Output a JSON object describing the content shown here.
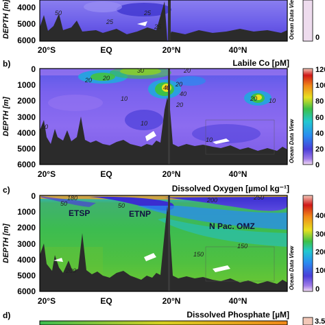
{
  "chart_data": [
    {
      "type": "heatmap",
      "panel_label": "",
      "title": "",
      "ylabel": "DEPTH [m]",
      "y_ticks": [
        "4000",
        "5000",
        "6000"
      ],
      "x_ticks": [
        "20°S",
        "EQ",
        "20°N",
        "40°N"
      ],
      "xlim": [
        -25,
        58
      ],
      "ylim": [
        3000,
        6000
      ],
      "contour_labels": [
        "50",
        "25",
        "25",
        "25"
      ],
      "colorbar_ticks": [
        "0"
      ],
      "credit": "Ocean Data View"
    },
    {
      "type": "heatmap",
      "panel_label": "b)",
      "title": "Labile Co [pM]",
      "ylabel": "DEPTH [m]",
      "y_ticks": [
        "0",
        "1000",
        "2000",
        "3000",
        "4000",
        "5000",
        "6000"
      ],
      "x_ticks": [
        "20°S",
        "EQ",
        "20°N",
        "40°N"
      ],
      "xlim": [
        -25,
        58
      ],
      "ylim": [
        0,
        6000
      ],
      "colorbar": {
        "min": 0,
        "max": 120,
        "ticks": [
          "120",
          "100",
          "80",
          "60",
          "40",
          "20",
          "0"
        ]
      },
      "contour_labels": [
        "30",
        "20",
        "20",
        "20",
        "40",
        "20",
        "40",
        "20",
        "10",
        "10",
        "20",
        "10",
        "10",
        "10"
      ],
      "credit": "Ocean Data View"
    },
    {
      "type": "heatmap",
      "panel_label": "c)",
      "title": "Dissolved Oxygen [µmol kg⁻¹]",
      "ylabel": "DEPTH [m]",
      "y_ticks": [
        "0",
        "1000",
        "2000",
        "3000",
        "4000",
        "5000",
        "6000"
      ],
      "x_ticks": [
        "20°S",
        "EQ",
        "20°N",
        "40°N"
      ],
      "xlim": [
        -25,
        58
      ],
      "ylim": [
        0,
        6000
      ],
      "colorbar": {
        "min": 0,
        "max": 400,
        "ticks": [
          "400",
          "300",
          "200",
          "100",
          "0"
        ]
      },
      "annotations": [
        "ETSP",
        "ETNP",
        "N Pac. OMZ"
      ],
      "contour_labels": [
        "180",
        "50",
        "50",
        "200",
        "250",
        "150",
        "150",
        "200"
      ],
      "credit": "Ocean Data View"
    },
    {
      "type": "heatmap",
      "panel_label": "d)",
      "title": "Dissolved Phosphate [µM]",
      "colorbar": {
        "ticks": [
          "3.5"
        ]
      }
    }
  ]
}
